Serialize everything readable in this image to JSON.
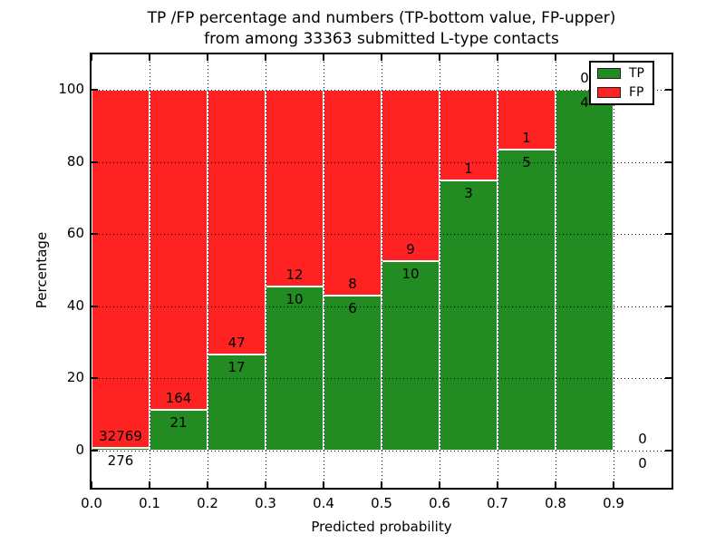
{
  "chart_data": {
    "type": "bar",
    "stacked": true,
    "percent_normalized": true,
    "title": "TP /FP percentage and numbers (TP-bottom value, FP-upper) from among 33363 submitted L-type contacts",
    "title_line1": "TP /FP percentage and numbers (TP-bottom value, FP-upper)",
    "title_line2": "from among 33363 submitted L-type contacts",
    "xlabel": "Predicted probability",
    "ylabel": "Percentage",
    "total_submitted": 33363,
    "bin_start": [
      0.0,
      0.1,
      0.2,
      0.3,
      0.4,
      0.5,
      0.6,
      0.7,
      0.8,
      0.9
    ],
    "bin_width": 0.1,
    "series": [
      {
        "name": "TP",
        "color": "#228b22",
        "counts": [
          276,
          21,
          17,
          10,
          6,
          10,
          3,
          5,
          4,
          0
        ]
      },
      {
        "name": "FP",
        "color": "#ff2222",
        "counts": [
          32769,
          164,
          47,
          12,
          8,
          9,
          1,
          1,
          0,
          0
        ]
      }
    ],
    "tp_percent": [
      0.84,
      11.35,
      26.56,
      45.45,
      42.86,
      52.63,
      75.0,
      83.33,
      100.0,
      null
    ],
    "x_tick_labels": [
      "0.0",
      "0.1",
      "0.2",
      "0.3",
      "0.4",
      "0.5",
      "0.6",
      "0.7",
      "0.8",
      "0.9"
    ],
    "y_tick_labels": [
      "0",
      "20",
      "40",
      "60",
      "80",
      "100"
    ],
    "xlim": [
      0.0,
      1.0
    ],
    "ylim": [
      -10,
      110
    ],
    "grid": "dotted",
    "grid_color": "#000000",
    "bar_edge_color": "#ffffff",
    "text_color": "#000000",
    "legend": {
      "position": "upper right",
      "entries": [
        "TP",
        "FP"
      ]
    }
  }
}
